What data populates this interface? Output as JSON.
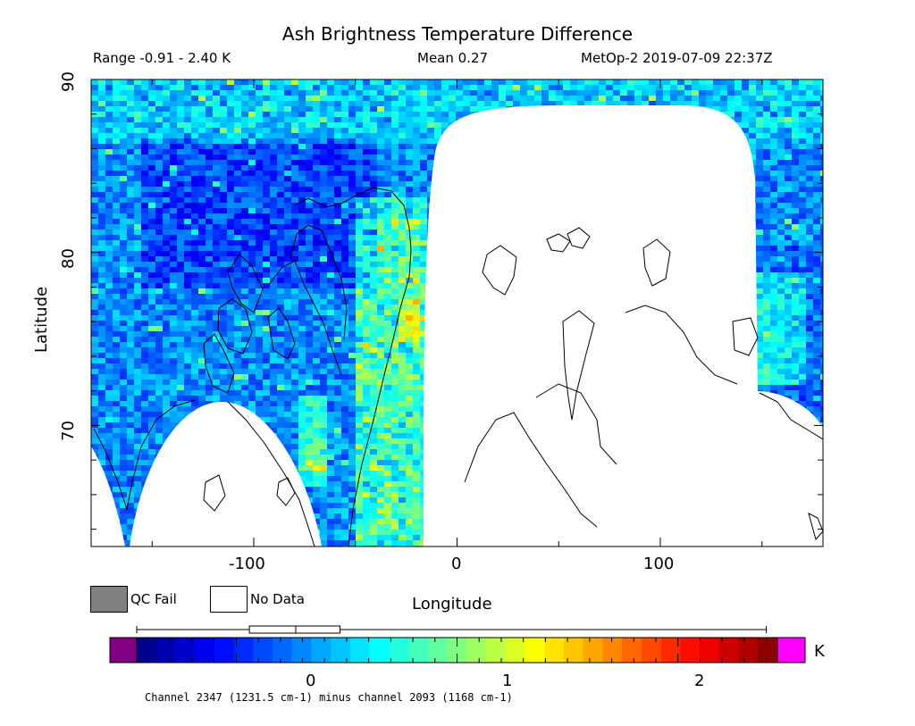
{
  "title": "Ash Brightness Temperature Difference",
  "range_text": "Range -0.91 - 2.40 K",
  "mean_text": "Mean 0.27",
  "platform_text": "MetOp-2 2019-07-09 22:37Z",
  "map": {
    "xlabel": "Longitude",
    "ylabel": "Latitude",
    "xlim": [
      -180,
      180
    ],
    "ylim": [
      63,
      90
    ],
    "x_ticks": [
      "-100",
      "0",
      "100"
    ],
    "y_ticks": [
      "70",
      "80",
      "90"
    ]
  },
  "legend": {
    "qc_fail_label": "QC Fail",
    "no_data_label": "No Data",
    "qc_fail_color": "#808080",
    "no_data_color": "#ffffff"
  },
  "colorbar": {
    "unit": "K",
    "ticks": [
      "0",
      "1",
      "2"
    ],
    "vmin": -0.45,
    "vmax": 2.45,
    "under_color": "#800080",
    "over_color": "#ff00ff",
    "boxplot": {
      "min": -0.91,
      "q1": 0.06,
      "median": 0.27,
      "q3": 0.47,
      "max": 2.4
    },
    "caption": "Channel 2347 (1231.5 cm-1) minus channel 2093 (1168 cm-1)"
  },
  "chart_data": {
    "type": "heatmap",
    "title": "Ash Brightness Temperature Difference",
    "xlabel": "Longitude",
    "ylabel": "Latitude",
    "xlim": [
      -180,
      180
    ],
    "ylim": [
      63,
      90
    ],
    "value_range": [
      -0.91,
      2.4
    ],
    "mean": 0.27,
    "unit": "K"
  }
}
